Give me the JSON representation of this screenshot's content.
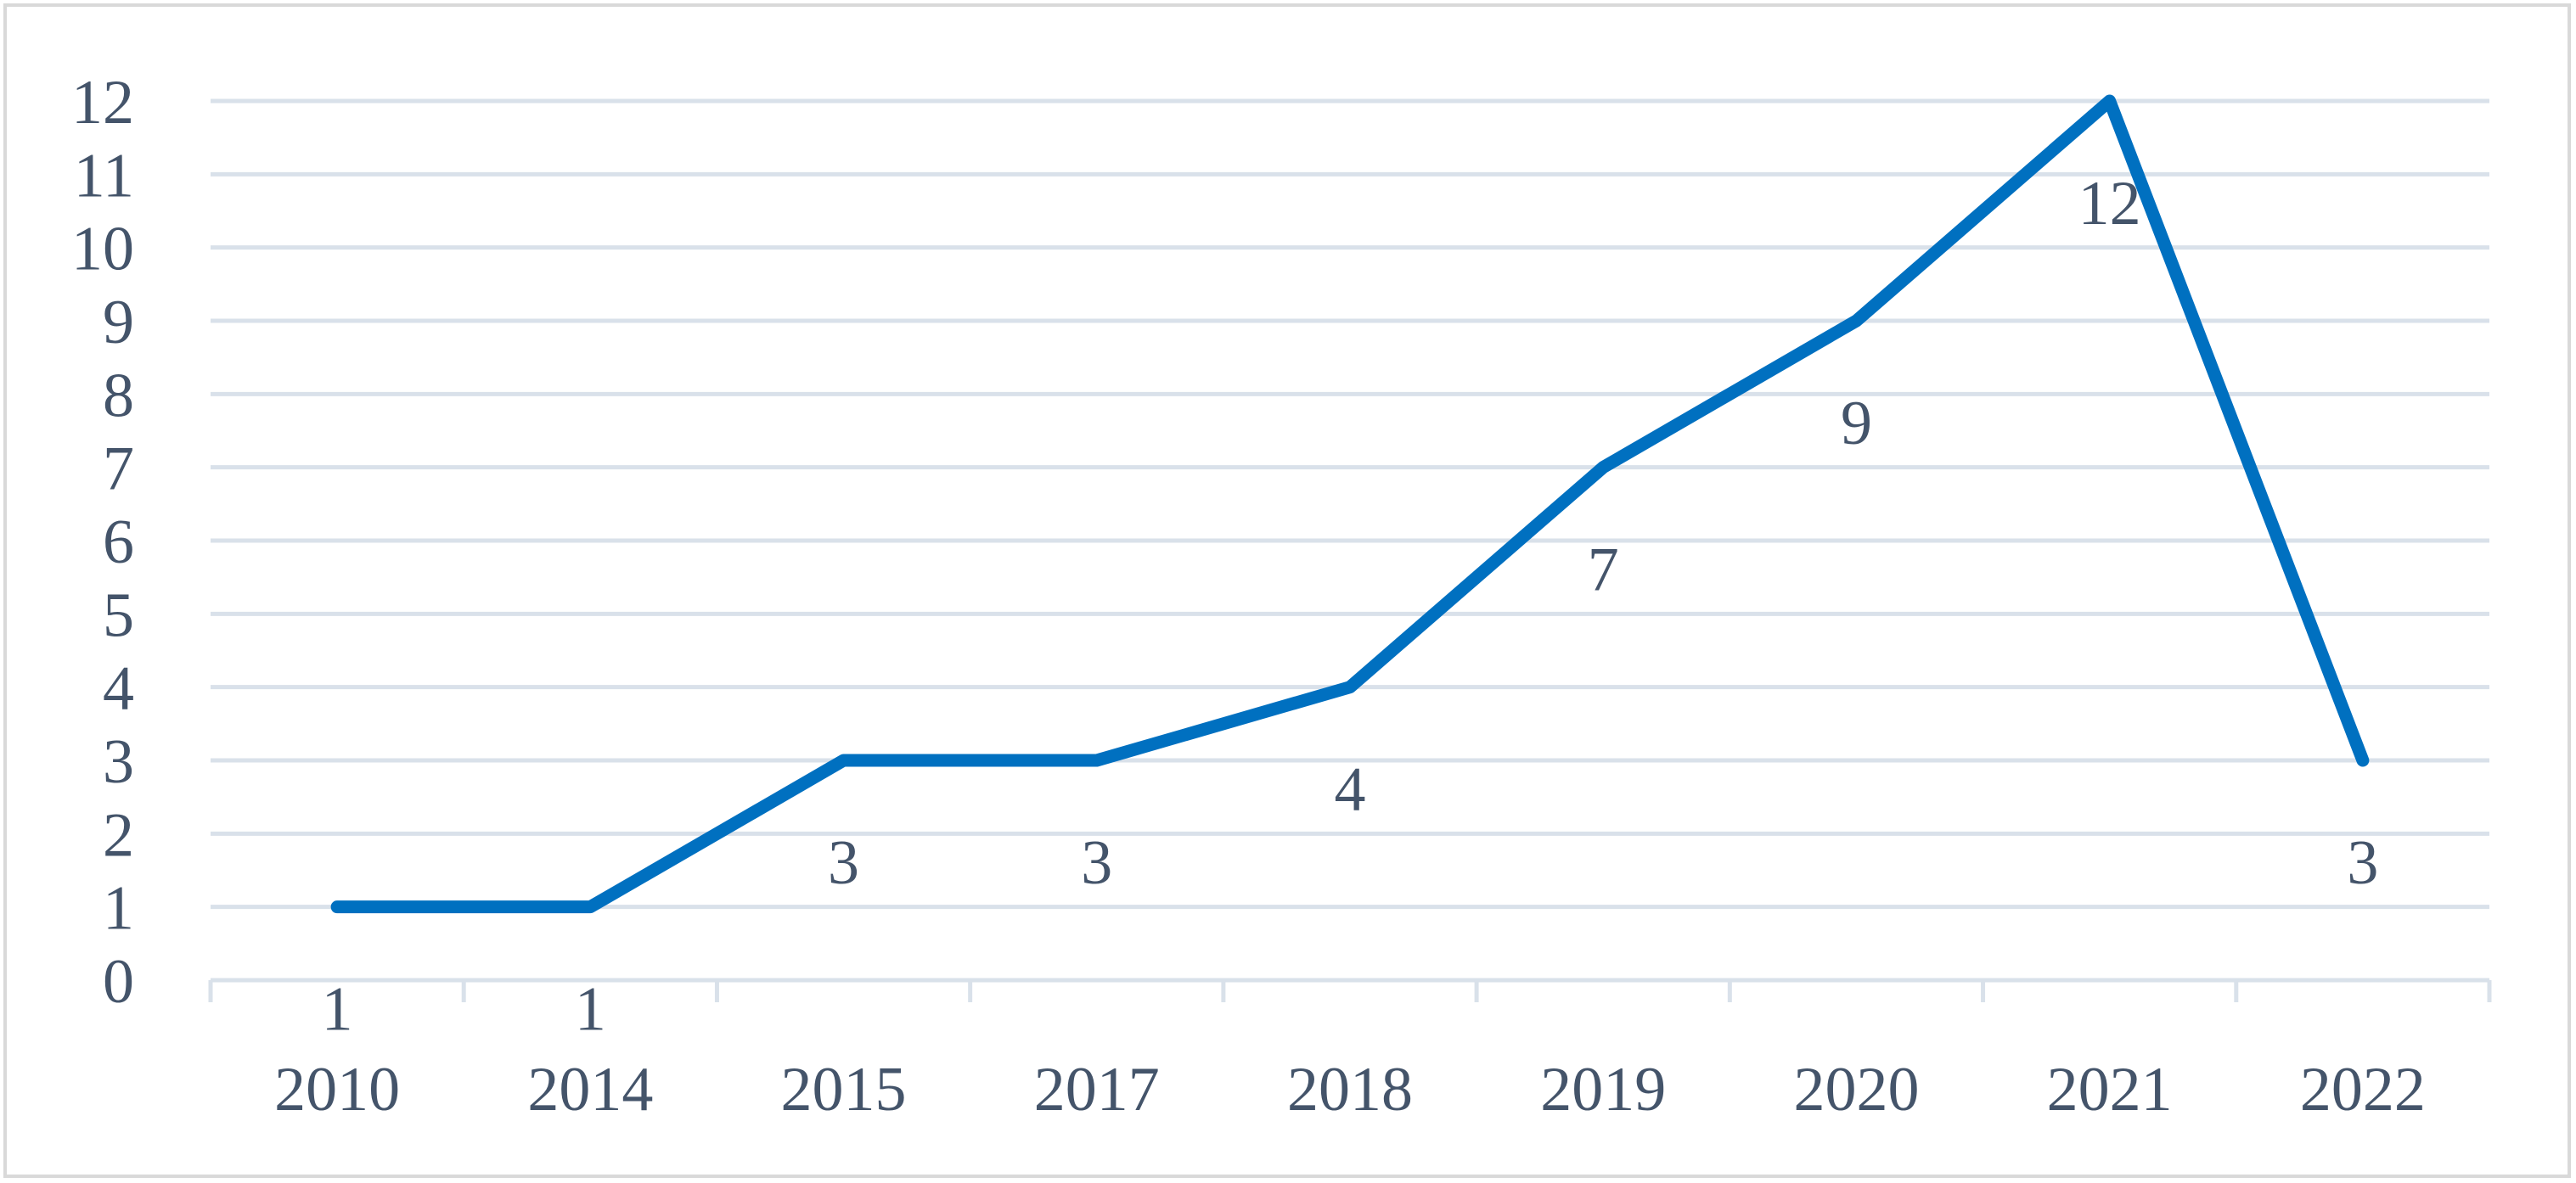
{
  "chart_data": {
    "type": "line",
    "title": "",
    "xlabel": "",
    "ylabel": "",
    "categories": [
      "2010",
      "2014",
      "2015",
      "2017",
      "2018",
      "2019",
      "2020",
      "2021",
      "2022"
    ],
    "series": [
      {
        "values": [
          1,
          1,
          3,
          3,
          4,
          7,
          9,
          12,
          3
        ],
        "color": "#0070c0"
      }
    ],
    "data_labels": [
      "1",
      "1",
      "3",
      "3",
      "4",
      "7",
      "9",
      "12",
      "3"
    ],
    "ylim": [
      0,
      12
    ],
    "yticks": [
      "0",
      "1",
      "2",
      "3",
      "4",
      "5",
      "6",
      "7",
      "8",
      "9",
      "10",
      "11",
      "12"
    ],
    "grid": true,
    "legend": "none",
    "colors": {
      "line": "#0070c0",
      "grid": "#d9e1ea",
      "text": "#44546a",
      "border": "#d9d9d9"
    }
  }
}
